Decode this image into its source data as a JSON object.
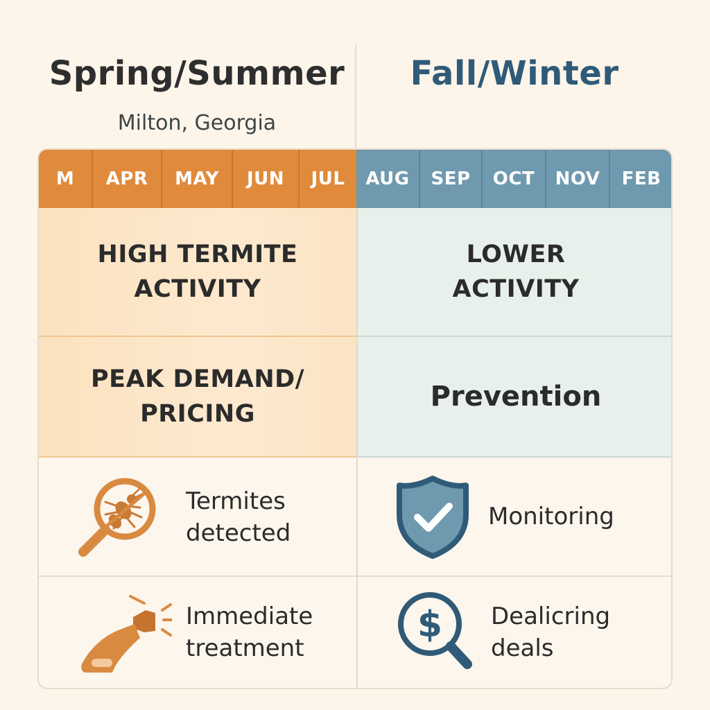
{
  "header": {
    "left_title": "Spring/Summer",
    "left_subtitle": "Milton, Georgia",
    "right_title": "Fall/Winter"
  },
  "months": {
    "left": [
      "M",
      "APR",
      "MAY",
      "JUN",
      "JUL"
    ],
    "right": [
      "AUG",
      "SEP",
      "OCT",
      "NOV",
      "FEB"
    ]
  },
  "rows": {
    "activity": {
      "left": [
        "HIGH TERMITE",
        "ACTIVITY"
      ],
      "right": [
        "LOWER",
        "ACTIVITY"
      ]
    },
    "demand": {
      "left": [
        "PEAK DEMAND/",
        "PRICING"
      ],
      "right": "Prevention"
    }
  },
  "items": {
    "termites": {
      "label": [
        "Termites",
        "detected"
      ],
      "icon": "magnifier-termite-icon"
    },
    "monitoring": {
      "label": "Monitoring",
      "icon": "shield-check-icon"
    },
    "treatment": {
      "label": [
        "Immediate",
        "treatment"
      ],
      "icon": "spray-bottle-icon"
    },
    "deals": {
      "label": [
        "Dealicring",
        "deals"
      ],
      "icon": "dollar-magnifier-icon"
    }
  },
  "colors": {
    "orange": "#e08a3c",
    "blue": "#6f99ae",
    "navy": "#2f5b78",
    "icon_orange": "#d98a41",
    "icon_blue": "#2f5b78"
  }
}
